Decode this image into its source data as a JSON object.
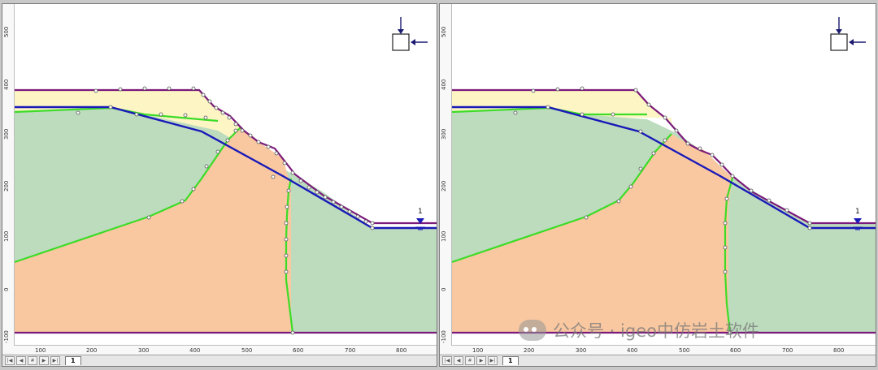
{
  "panes": [
    {
      "name": "left",
      "y_ticks": [
        "500",
        "400",
        "300",
        "200",
        "100",
        "0",
        "-100"
      ],
      "x_ticks": [
        "100",
        "200",
        "300",
        "400",
        "500",
        "600",
        "700",
        "800"
      ],
      "water_label": "1",
      "sheet_tab": "1",
      "nav_buttons": [
        "|◀",
        "◀",
        "#",
        "▶",
        "▶|"
      ]
    },
    {
      "name": "right",
      "y_ticks": [
        "500",
        "400",
        "300",
        "200",
        "100",
        "0",
        "-100"
      ],
      "x_ticks": [
        "100",
        "200",
        "300",
        "400",
        "500",
        "600",
        "700",
        "800"
      ],
      "water_label": "1",
      "sheet_tab": "1",
      "nav_buttons": [
        "|◀",
        "◀",
        "#",
        "▶",
        "▶|"
      ]
    }
  ],
  "colors": {
    "upper_layer": "#fdf5c4",
    "mid_layer": "#bddcbe",
    "core_layer": "#f9c8a0",
    "boundary_line": "#3cdc28",
    "water_table": "#1a1ab8",
    "surface": "#7a1a7a",
    "node": "#ffffff"
  },
  "icons": {
    "load_icon": "square-with-arrows-icon",
    "water_marker": "water-level-triangle-icon"
  },
  "watermark": {
    "text": "公众号 · igeo中仿岩土软件"
  }
}
